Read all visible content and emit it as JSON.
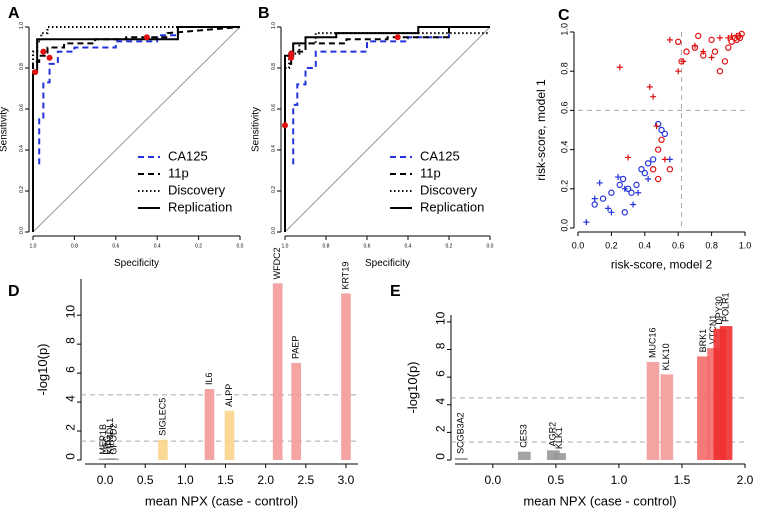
{
  "chart_data": [
    {
      "panel": "A",
      "type": "line",
      "xlabel": "Specificity",
      "ylabel": "Sensitivity",
      "xlim": [
        1,
        0
      ],
      "ylim": [
        0,
        1
      ],
      "xticks": [
        {
          "value": 1,
          "label": "1.0"
        },
        {
          "value": 0.8,
          "label": "0.8"
        },
        {
          "value": 0.6,
          "label": "0.6"
        },
        {
          "value": 0.4,
          "label": "0.4"
        },
        {
          "value": 0.2,
          "label": "0.2"
        },
        {
          "value": 0,
          "label": "0.0"
        }
      ],
      "yticks": [
        {
          "value": 0,
          "label": "0.0"
        },
        {
          "value": 0.2,
          "label": "0.2"
        },
        {
          "value": 0.4,
          "label": "0.4"
        },
        {
          "value": 0.6,
          "label": "0.6"
        },
        {
          "value": 0.8,
          "label": "0.8"
        },
        {
          "value": 1,
          "label": "1.0"
        }
      ],
      "series": [
        {
          "name": "CA125",
          "color": "#2233dd",
          "dash": "dashed",
          "x": [
            0.97,
            0.97,
            0.95,
            0.95,
            0.92,
            0.92,
            0.88,
            0.88,
            0.8,
            0.8,
            0.6,
            0.6,
            0.4,
            0.4,
            0.3,
            0.3,
            0
          ],
          "y": [
            0.33,
            0.55,
            0.55,
            0.73,
            0.73,
            0.82,
            0.82,
            0.88,
            0.88,
            0.9,
            0.9,
            0.93,
            0.93,
            0.96,
            0.96,
            1,
            1
          ]
        },
        {
          "name": "11p",
          "color": "#000000",
          "dash": "dashed",
          "x": [
            1,
            1,
            0.97,
            0.97,
            0.93,
            0.93,
            0.85,
            0.85,
            0.7,
            0.7,
            0.55,
            0.55,
            0.35,
            0.35,
            0
          ],
          "y": [
            0.6,
            0.83,
            0.83,
            0.86,
            0.86,
            0.9,
            0.9,
            0.92,
            0.92,
            0.94,
            0.94,
            0.95,
            0.95,
            0.97,
            1
          ]
        },
        {
          "name": "Discovery",
          "color": "#000000",
          "dash": "dotted",
          "x": [
            1,
            1,
            0.98,
            0.98,
            0.96,
            0.96,
            0.93,
            0.93,
            0
          ],
          "y": [
            0,
            0.88,
            0.88,
            0.93,
            0.93,
            0.97,
            0.97,
            1,
            1
          ]
        },
        {
          "name": "Replication",
          "color": "#000000",
          "dash": "solid",
          "x": [
            1,
            1,
            0.98,
            0.98,
            0.3,
            0.3,
            0
          ],
          "y": [
            0,
            0.78,
            0.78,
            0.94,
            0.94,
            1,
            1
          ]
        }
      ],
      "highlights": {
        "color": "#e01010",
        "x": [
          0.99,
          0.95,
          0.92,
          0.45
        ],
        "y": [
          0.78,
          0.88,
          0.85,
          0.95
        ]
      }
    },
    {
      "panel": "B",
      "type": "line",
      "xlabel": "Specificity",
      "ylabel": "Sensitivity",
      "xlim": [
        1,
        0
      ],
      "ylim": [
        0,
        1
      ],
      "xticks": [
        {
          "value": 1,
          "label": "1.0"
        },
        {
          "value": 0.8,
          "label": "0.8"
        },
        {
          "value": 0.6,
          "label": "0.6"
        },
        {
          "value": 0.4,
          "label": "0.4"
        },
        {
          "value": 0.2,
          "label": "0.2"
        },
        {
          "value": 0,
          "label": "0.0"
        }
      ],
      "yticks": [
        {
          "value": 0,
          "label": "0.0"
        },
        {
          "value": 0.2,
          "label": "0.2"
        },
        {
          "value": 0.4,
          "label": "0.4"
        },
        {
          "value": 0.6,
          "label": "0.6"
        },
        {
          "value": 0.8,
          "label": "0.8"
        },
        {
          "value": 1,
          "label": "1.0"
        }
      ],
      "series": [
        {
          "name": "CA125",
          "color": "#2233dd",
          "dash": "dashed",
          "x": [
            0.96,
            0.96,
            0.94,
            0.94,
            0.9,
            0.9,
            0.85,
            0.85,
            0.6,
            0.6,
            0.4,
            0.4,
            0.2,
            0.2,
            0
          ],
          "y": [
            0.33,
            0.62,
            0.62,
            0.72,
            0.72,
            0.8,
            0.8,
            0.88,
            0.88,
            0.93,
            0.93,
            0.95,
            0.95,
            1,
            1
          ]
        },
        {
          "name": "11p",
          "color": "#000000",
          "dash": "dashed",
          "x": [
            1,
            1,
            0.97,
            0.97,
            0.9,
            0.9,
            0.7,
            0.7,
            0.5,
            0.5,
            0.2,
            0.2,
            0
          ],
          "y": [
            0.5,
            0.82,
            0.82,
            0.88,
            0.88,
            0.92,
            0.92,
            0.94,
            0.94,
            0.95,
            0.95,
            1,
            1
          ]
        },
        {
          "name": "Discovery",
          "color": "#000000",
          "dash": "dotted",
          "x": [
            1,
            1,
            0.98,
            0.98,
            0.93,
            0.93,
            0.85,
            0.85,
            0
          ],
          "y": [
            0,
            0.8,
            0.8,
            0.87,
            0.87,
            0.92,
            0.92,
            0.97,
            0.97
          ]
        },
        {
          "name": "Replication",
          "color": "#000000",
          "dash": "solid",
          "x": [
            1,
            1,
            0.96,
            0.96,
            0.9,
            0.9,
            0.75,
            0.75,
            0.35,
            0.35,
            0
          ],
          "y": [
            0,
            0.86,
            0.86,
            0.92,
            0.92,
            0.95,
            0.95,
            0.97,
            0.97,
            1,
            1
          ]
        }
      ],
      "highlights": {
        "color": "#e01010",
        "x": [
          1,
          0.97,
          0.97,
          0.45
        ],
        "y": [
          0.52,
          0.85,
          0.87,
          0.95
        ]
      }
    },
    {
      "panel": "C",
      "type": "scatter",
      "xlabel": "risk-score, model 2",
      "ylabel": "risk-score, model 1",
      "xlim": [
        0,
        1
      ],
      "ylim": [
        0,
        1
      ],
      "xticks": [
        {
          "value": 0,
          "label": "0.0"
        },
        {
          "value": 0.2,
          "label": "0.2"
        },
        {
          "value": 0.4,
          "label": "0.4"
        },
        {
          "value": 0.6,
          "label": "0.6"
        },
        {
          "value": 0.8,
          "label": "0.8"
        },
        {
          "value": 1,
          "label": "1.0"
        }
      ],
      "yticks": [
        {
          "value": 0,
          "label": "0.0"
        },
        {
          "value": 0.2,
          "label": "0.2"
        },
        {
          "value": 0.4,
          "label": "0.4"
        },
        {
          "value": 0.6,
          "label": "0.6"
        },
        {
          "value": 0.8,
          "label": "0.8"
        },
        {
          "value": 1,
          "label": "1.0"
        }
      ],
      "thresholds": {
        "x": 0.62,
        "y": 0.6
      },
      "groups": [
        {
          "color": "#2233dd",
          "marker": "circle",
          "x": [
            0.25,
            0.27,
            0.3,
            0.32,
            0.35,
            0.38,
            0.4,
            0.42,
            0.45,
            0.48,
            0.5,
            0.52,
            0.1,
            0.15,
            0.2,
            0.28
          ],
          "y": [
            0.22,
            0.25,
            0.2,
            0.18,
            0.22,
            0.3,
            0.28,
            0.33,
            0.35,
            0.53,
            0.5,
            0.48,
            0.12,
            0.15,
            0.18,
            0.08
          ]
        },
        {
          "color": "#2233dd",
          "marker": "plus",
          "x": [
            0.05,
            0.1,
            0.13,
            0.18,
            0.2,
            0.24,
            0.28,
            0.33,
            0.36,
            0.42,
            0.55
          ],
          "y": [
            0.03,
            0.15,
            0.23,
            0.1,
            0.08,
            0.26,
            0.2,
            0.12,
            0.18,
            0.25,
            0.35
          ]
        },
        {
          "color": "#e01010",
          "marker": "circle",
          "x": [
            0.48,
            0.5,
            0.55,
            0.6,
            0.62,
            0.65,
            0.7,
            0.72,
            0.75,
            0.8,
            0.82,
            0.85,
            0.88,
            0.9,
            0.92,
            0.94,
            0.95,
            0.96,
            0.97,
            0.98,
            0.45,
            0.48
          ],
          "y": [
            0.4,
            0.45,
            0.3,
            0.95,
            0.85,
            0.9,
            0.92,
            0.98,
            0.88,
            0.96,
            0.9,
            0.8,
            0.85,
            0.92,
            0.95,
            0.97,
            0.96,
            0.98,
            0.97,
            0.99,
            0.3,
            0.25
          ]
        },
        {
          "color": "#e01010",
          "marker": "plus",
          "x": [
            0.25,
            0.3,
            0.43,
            0.45,
            0.47,
            0.52,
            0.55,
            0.6,
            0.63,
            0.7,
            0.75,
            0.8,
            0.85,
            0.9,
            0.92,
            0.95,
            0.97
          ],
          "y": [
            0.82,
            0.36,
            0.72,
            0.67,
            0.52,
            0.35,
            0.96,
            0.8,
            0.85,
            0.93,
            0.9,
            0.87,
            0.97,
            0.97,
            0.98,
            0.98,
            0.98
          ]
        }
      ]
    },
    {
      "panel": "D",
      "type": "bar",
      "xlabel": "mean NPX (case - control)",
      "ylabel": "-log10(p)",
      "xlim": [
        -0.25,
        3.15
      ],
      "ylim": [
        0,
        12.5
      ],
      "xticks": [
        {
          "value": 0,
          "label": "0.0"
        },
        0.5,
        {
          "value": 1,
          "label": "1.0"
        },
        1.5,
        {
          "value": 2,
          "label": "2.0"
        },
        2.5,
        {
          "value": 3,
          "label": "3.0"
        }
      ],
      "yticks": [
        0,
        2,
        4,
        6,
        8,
        10
      ],
      "hlines": [
        1.3,
        4.5
      ],
      "bar_width": 0.12,
      "labels": [
        "MEP1B",
        "FRG",
        "KIR3DL1",
        "GFOD2",
        "SIGLEC5",
        "IL6",
        "ALPP",
        "WFDC2",
        "PAEP",
        "KRT19"
      ],
      "x": [
        -0.02,
        0.03,
        0.07,
        0.11,
        0.72,
        1.3,
        1.55,
        2.15,
        2.38,
        3.0
      ],
      "values": [
        0.1,
        0.1,
        0.12,
        0.1,
        1.4,
        4.9,
        3.4,
        12.2,
        6.7,
        11.5
      ],
      "colors": [
        "#999999",
        "#999999",
        "#999999",
        "#999999",
        "#fcd48c",
        "#f49a9a",
        "#fcd48c",
        "#f49a9a",
        "#f49a9a",
        "#f49a9a"
      ]
    },
    {
      "panel": "E",
      "type": "bar",
      "xlabel": "mean NPX (case - control)",
      "ylabel": "-log10(p)",
      "xlim": [
        -0.3,
        2.0
      ],
      "ylim": [
        0,
        10.5
      ],
      "xticks": [
        {
          "value": 0,
          "label": "0.0"
        },
        0.5,
        {
          "value": 1,
          "label": "1.0"
        },
        1.5,
        {
          "value": 2,
          "label": "2.0"
        }
      ],
      "yticks": [
        0,
        2,
        4,
        6,
        8,
        10
      ],
      "hlines": [
        1.3,
        4.5
      ],
      "bar_width": 0.1,
      "labels": [
        "SCGB3A2",
        "CES3",
        "AGR2",
        "KLK1",
        "MUC16",
        "KLK10",
        "BRK1",
        "VTCN1",
        "DPY30",
        "POLR1"
      ],
      "x": [
        -0.25,
        0.25,
        0.48,
        0.53,
        1.27,
        1.38,
        1.67,
        1.75,
        1.8,
        1.85
      ],
      "values": [
        0.15,
        0.6,
        0.7,
        0.5,
        7.1,
        6.2,
        7.5,
        8.1,
        9.5,
        9.7
      ],
      "colors": [
        "#999999",
        "#999999",
        "#999999",
        "#999999",
        "#f49a9a",
        "#f49a9a",
        "#f46a6a",
        "#f46a6a",
        "#ee3030",
        "#ee3030"
      ]
    }
  ]
}
